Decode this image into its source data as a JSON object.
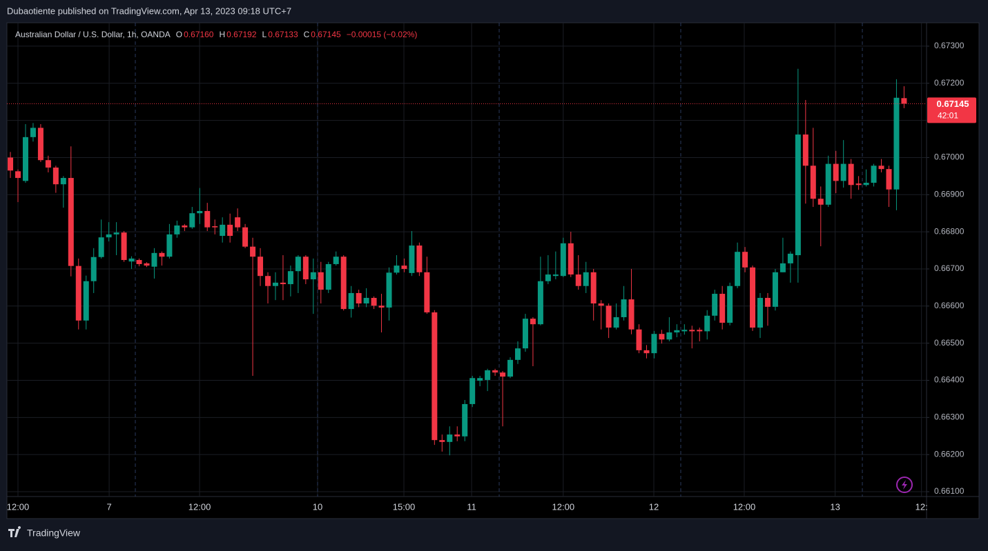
{
  "header": {
    "published": "Dubaotiente published on TradingView.com, Apr 13, 2023 09:18 UTC+7",
    "brand": "TradingView"
  },
  "chart_data": {
    "type": "candlestick",
    "legend": {
      "symbol": "Australian Dollar / U.S. Dollar, 1h, OANDA",
      "fields": [
        {
          "key": "O",
          "value": "0.67160"
        },
        {
          "key": "H",
          "value": "0.67192"
        },
        {
          "key": "L",
          "value": "0.67133"
        },
        {
          "key": "C",
          "value": "0.67145"
        }
      ],
      "change": "−0.00015 (−0.02%)"
    },
    "up_color": "#089981",
    "down_color": "#f23645",
    "open": [
      0.67,
      0.66963,
      0.66937,
      0.67055,
      0.6708,
      0.66993,
      0.66973,
      0.66928,
      0.66945,
      0.66708,
      0.66561,
      0.66667,
      0.66732,
      0.66785,
      0.66793,
      0.66798,
      0.6672,
      0.66724,
      0.66715,
      0.66706,
      0.66743,
      0.66733,
      0.66793,
      0.66817,
      0.66812,
      0.6685,
      0.66856,
      0.66815,
      0.66789,
      0.66819,
      0.66839,
      0.66812,
      0.6676,
      0.66733,
      0.66681,
      0.66654,
      0.66663,
      0.66659,
      0.66694,
      0.66733,
      0.66672,
      0.66691,
      0.66644,
      0.66713,
      0.66733,
      0.66592,
      0.66635,
      0.66607,
      0.66622,
      0.66601,
      0.66596,
      0.6669,
      0.66709,
      0.66689,
      0.66763,
      0.66691,
      0.66583,
      0.66239,
      0.66234,
      0.66254,
      0.66249,
      0.66336,
      0.66399,
      0.66401,
      0.66427,
      0.66421,
      0.6641,
      0.66455,
      0.66486,
      0.66566,
      0.66551,
      0.66667,
      0.66681,
      0.66681,
      0.66769,
      0.66685,
      0.66654,
      0.66691,
      0.66607,
      0.66601,
      0.66542,
      0.6657,
      0.66618,
      0.66537,
      0.66481,
      0.66473,
      0.66525,
      0.6651,
      0.66529,
      0.66532,
      0.66536,
      0.66536,
      0.66532,
      0.66574,
      0.66633,
      0.66555,
      0.66654,
      0.66746,
      0.66704,
      0.66542,
      0.66622,
      0.66598,
      0.66691,
      0.66715,
      0.66737,
      0.67062,
      0.66978,
      0.66889,
      0.66873,
      0.66983,
      0.66937,
      0.66983,
      0.6693,
      0.66926,
      0.66932,
      0.66978,
      0.66969,
      0.66914,
      0.6716
    ],
    "high": [
      0.67015,
      0.66968,
      0.6709,
      0.67093,
      0.6709,
      0.67005,
      0.66978,
      0.6695,
      0.6703,
      0.66728,
      0.66682,
      0.66756,
      0.66833,
      0.66826,
      0.66826,
      0.66802,
      0.66734,
      0.66728,
      0.66718,
      0.66756,
      0.66747,
      0.66821,
      0.6683,
      0.66821,
      0.66867,
      0.66918,
      0.66878,
      0.66833,
      0.66839,
      0.66849,
      0.66863,
      0.66821,
      0.66784,
      0.66756,
      0.66691,
      0.66691,
      0.66737,
      0.66709,
      0.66737,
      0.66737,
      0.66728,
      0.66719,
      0.66719,
      0.66747,
      0.66737,
      0.66654,
      0.66644,
      0.66648,
      0.66626,
      0.66633,
      0.66704,
      0.66737,
      0.66728,
      0.66802,
      0.66771,
      0.66733,
      0.66589,
      0.66254,
      0.66276,
      0.66276,
      0.66347,
      0.66412,
      0.66412,
      0.66431,
      0.66431,
      0.66425,
      0.66462,
      0.66505,
      0.66579,
      0.6657,
      0.66733,
      0.66737,
      0.66747,
      0.66784,
      0.668,
      0.66737,
      0.66719,
      0.667,
      0.66616,
      0.66607,
      0.66607,
      0.66654,
      0.667,
      0.66551,
      0.66495,
      0.66533,
      0.66536,
      0.6657,
      0.66551,
      0.66551,
      0.66547,
      0.66542,
      0.66589,
      0.66644,
      0.66654,
      0.66663,
      0.66771,
      0.66759,
      0.66709,
      0.66635,
      0.66635,
      0.667,
      0.66784,
      0.66747,
      0.67239,
      0.67155,
      0.6708,
      0.66922,
      0.67005,
      0.67018,
      0.67047,
      0.66996,
      0.6695,
      0.66968,
      0.66983,
      0.66996,
      0.66978,
      0.67211,
      0.67192
    ],
    "low": [
      0.66945,
      0.6688,
      0.66932,
      0.67043,
      0.66988,
      0.6696,
      0.66905,
      0.66865,
      0.6668,
      0.66537,
      0.66537,
      0.66635,
      0.66728,
      0.66774,
      0.66737,
      0.66719,
      0.667,
      0.66707,
      0.66705,
      0.66674,
      0.66709,
      0.66728,
      0.66784,
      0.66802,
      0.66808,
      0.66821,
      0.66802,
      0.66793,
      0.66771,
      0.66771,
      0.66802,
      0.66756,
      0.66412,
      0.66654,
      0.66607,
      0.66616,
      0.66616,
      0.66626,
      0.66635,
      0.66659,
      0.66579,
      0.66607,
      0.66635,
      0.66709,
      0.66588,
      0.66569,
      0.66597,
      0.66597,
      0.66592,
      0.66529,
      0.66561,
      0.66685,
      0.66691,
      0.66681,
      0.66681,
      0.66579,
      0.66226,
      0.66208,
      0.66198,
      0.66236,
      0.66236,
      0.66328,
      0.66384,
      0.66371,
      0.66412,
      0.66276,
      0.66406,
      0.66444,
      0.66477,
      0.66438,
      0.66548,
      0.66659,
      0.66672,
      0.66678,
      0.66678,
      0.66644,
      0.66635,
      0.66561,
      0.66537,
      0.66514,
      0.66537,
      0.66561,
      0.66524,
      0.66473,
      0.66459,
      0.66459,
      0.66499,
      0.66505,
      0.66516,
      0.66523,
      0.66486,
      0.66505,
      0.6651,
      0.66561,
      0.66537,
      0.66548,
      0.66648,
      0.66691,
      0.66533,
      0.66514,
      0.66547,
      0.66588,
      0.66691,
      0.66663,
      0.66663,
      0.66876,
      0.66867,
      0.66761,
      0.66867,
      0.66904,
      0.66919,
      0.66889,
      0.66913,
      0.66922,
      0.66922,
      0.6696,
      0.66867,
      0.66858,
      0.67133
    ],
    "close": [
      0.66965,
      0.66945,
      0.67055,
      0.6708,
      0.66993,
      0.66973,
      0.66928,
      0.66945,
      0.66708,
      0.66561,
      0.66667,
      0.66732,
      0.66785,
      0.66793,
      0.66798,
      0.66724,
      0.66728,
      0.66713,
      0.66709,
      0.66743,
      0.66733,
      0.66793,
      0.66817,
      0.66812,
      0.6685,
      0.66856,
      0.66812,
      0.66812,
      0.66819,
      0.66789,
      0.66812,
      0.6676,
      0.66733,
      0.66681,
      0.66654,
      0.66663,
      0.66659,
      0.66694,
      0.66733,
      0.66672,
      0.66691,
      0.66644,
      0.66713,
      0.66733,
      0.66592,
      0.66635,
      0.66607,
      0.66622,
      0.66601,
      0.66596,
      0.6669,
      0.66709,
      0.667,
      0.66763,
      0.66691,
      0.66583,
      0.66239,
      0.66234,
      0.66254,
      0.66249,
      0.66336,
      0.66406,
      0.66406,
      0.66427,
      0.66421,
      0.6641,
      0.66455,
      0.66486,
      0.66566,
      0.66551,
      0.66667,
      0.66685,
      0.66685,
      0.66769,
      0.66685,
      0.66654,
      0.66691,
      0.66607,
      0.66601,
      0.66542,
      0.6657,
      0.66618,
      0.66537,
      0.66481,
      0.66473,
      0.66525,
      0.6651,
      0.66529,
      0.66535,
      0.66536,
      0.66532,
      0.66532,
      0.66574,
      0.66633,
      0.66555,
      0.66654,
      0.66746,
      0.66704,
      0.66542,
      0.66622,
      0.66598,
      0.66691,
      0.66715,
      0.66741,
      0.67062,
      0.66978,
      0.66889,
      0.66873,
      0.66983,
      0.66937,
      0.66983,
      0.66926,
      0.66926,
      0.66932,
      0.66978,
      0.66969,
      0.66914,
      0.67161,
      0.67145
    ],
    "xlim": [
      -0.46,
      120.97
    ],
    "xticks": [
      {
        "value": 1,
        "label": "12:00"
      },
      {
        "value": 13.04,
        "label": "7"
      },
      {
        "value": 24.98,
        "label": "12:00"
      },
      {
        "value": 40.56,
        "label": "10"
      },
      {
        "value": 51.96,
        "label": "15:00"
      },
      {
        "value": 60.9,
        "label": "11"
      },
      {
        "value": 73.0,
        "label": "12:00"
      },
      {
        "value": 84.96,
        "label": "12"
      },
      {
        "value": 96.9,
        "label": "12:00"
      },
      {
        "value": 108.9,
        "label": "13"
      },
      {
        "value": 120.3,
        "label": "12:"
      }
    ],
    "ylim": [
      0.66087,
      0.67363
    ],
    "yticks": [
      {
        "value": 0.673,
        "label": "0.67300"
      },
      {
        "value": 0.672,
        "label": "0.67200"
      },
      {
        "value": 0.671,
        "label": "0.67100"
      },
      {
        "value": 0.67,
        "label": "0.67000"
      },
      {
        "value": 0.669,
        "label": "0.66900"
      },
      {
        "value": 0.668,
        "label": "0.66800"
      },
      {
        "value": 0.667,
        "label": "0.66700"
      },
      {
        "value": 0.666,
        "label": "0.66600"
      },
      {
        "value": 0.665,
        "label": "0.66500"
      },
      {
        "value": 0.664,
        "label": "0.66400"
      },
      {
        "value": 0.663,
        "label": "0.66300"
      },
      {
        "value": 0.662,
        "label": "0.66200"
      },
      {
        "value": 0.661,
        "label": "0.66100"
      }
    ],
    "grid": true,
    "last_price": {
      "value": 0.67145,
      "countdown": "42:01"
    }
  }
}
